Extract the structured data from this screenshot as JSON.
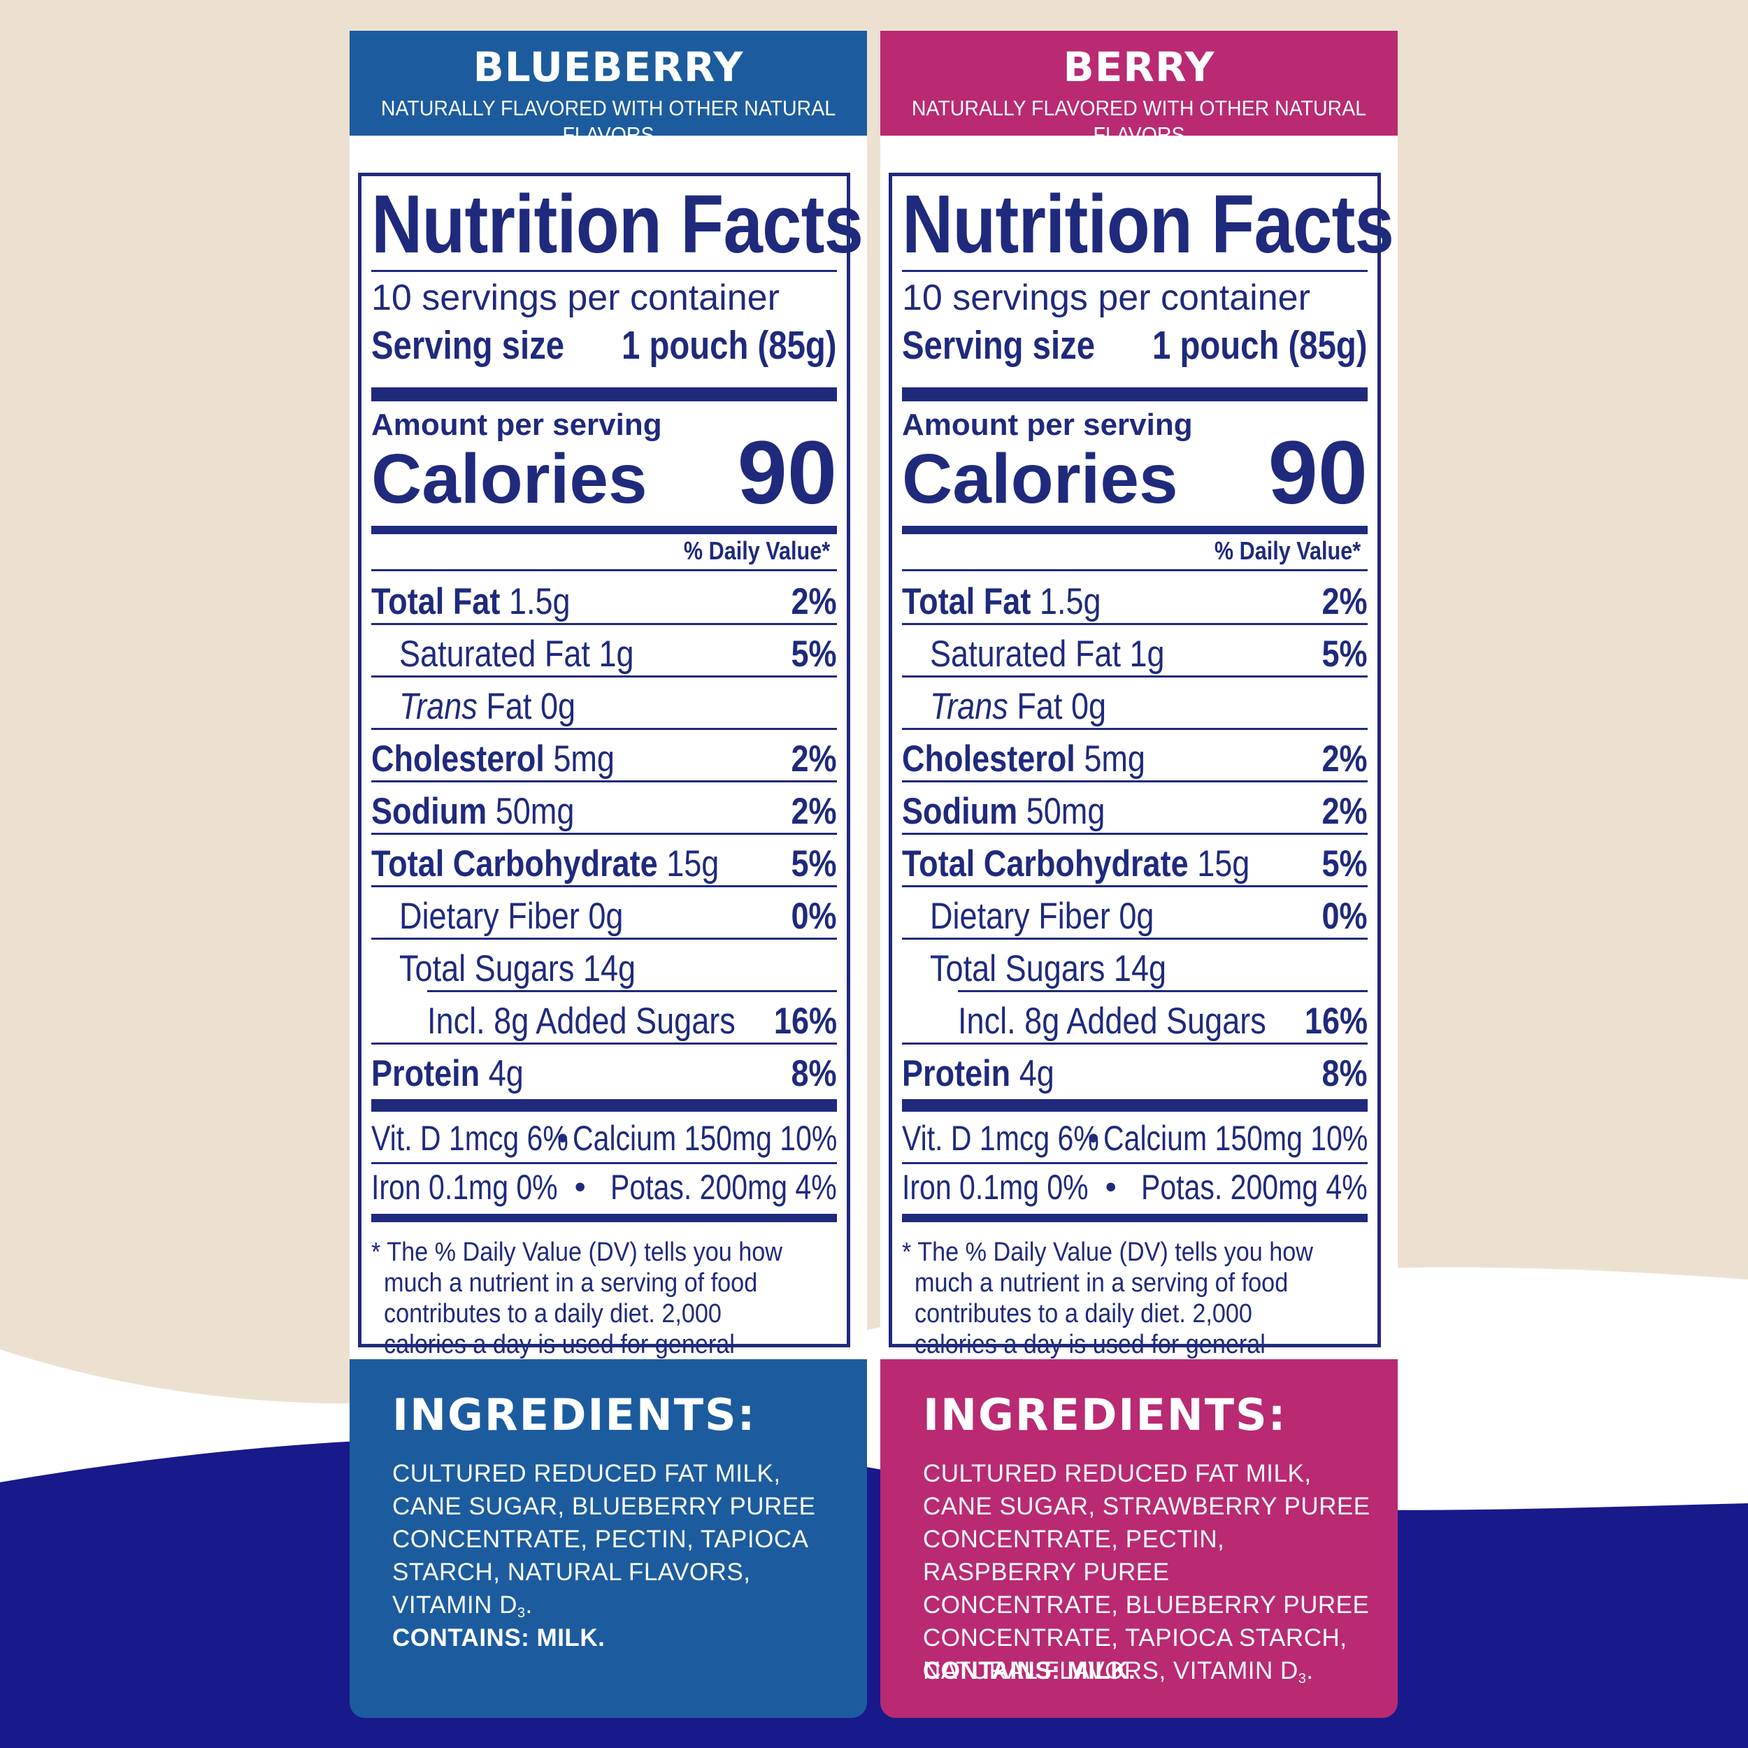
{
  "colors": {
    "navy": "#1f2a7d",
    "blueberry_blue": "#1c5c9e",
    "berry_magenta": "#b92a72",
    "cream": "#ece1d0"
  },
  "panels": [
    {
      "flavor": "BLUEBERRY",
      "flavor_subtitle": "NATURALLY FLAVORED WITH OTHER NATURAL FLAVORS",
      "nutrition": {
        "title": "Nutrition Facts",
        "servings": "10 servings per container",
        "serving_size_label": "Serving size",
        "serving_size_value": "1 pouch (85g)",
        "amount_per_serving": "Amount per serving",
        "calories_label": "Calories",
        "calories_value": "90",
        "dv_header": "% Daily Value*",
        "total_fat_label": "Total Fat",
        "total_fat_amount": "1.5g",
        "total_fat_dv": "2%",
        "sat_fat": "Saturated Fat 1g",
        "sat_fat_dv": "5%",
        "trans_label": "Trans",
        "trans_rest": "Fat 0g",
        "cholesterol_label": "Cholesterol",
        "cholesterol_amount": "5mg",
        "cholesterol_dv": "2%",
        "sodium_label": "Sodium",
        "sodium_amount": "50mg",
        "sodium_dv": "2%",
        "carb_label": "Total Carbohydrate",
        "carb_amount": "15g",
        "carb_dv": "5%",
        "fiber": "Dietary Fiber 0g",
        "fiber_dv": "0%",
        "sugars": "Total Sugars 14g",
        "added_sugars": "Incl. 8g Added Sugars",
        "added_sugars_dv": "16%",
        "protein_label": "Protein",
        "protein_amount": "4g",
        "protein_dv": "8%",
        "vitd": "Vit. D 1mcg 6%",
        "calcium": "Calcium 150mg 10%",
        "iron": "Iron 0.1mg 0%",
        "potas": "Potas. 200mg 4%",
        "footnote": "* The % Daily Value (DV) tells you how much a nutrient in a serving of food contributes to a daily diet. 2,000 calories a day is used for general nutrition advice."
      },
      "ingredients_heading": "INGREDIENTS:",
      "ingredients": "CULTURED REDUCED FAT MILK,\nCANE SUGAR, BLUEBERRY PUREE\nCONCENTRATE, PECTIN, TAPIOCA\nSTARCH, NATURAL FLAVORS,\nVITAMIN D",
      "ingredients_sub": "3",
      "ingredients_end": ".",
      "contains": "CONTAINS: MILK."
    },
    {
      "flavor": "BERRY",
      "flavor_subtitle": "NATURALLY FLAVORED WITH OTHER NATURAL FLAVORS",
      "nutrition": {
        "title": "Nutrition Facts",
        "servings": "10 servings per container",
        "serving_size_label": "Serving size",
        "serving_size_value": "1 pouch (85g)",
        "amount_per_serving": "Amount per serving",
        "calories_label": "Calories",
        "calories_value": "90",
        "dv_header": "% Daily Value*",
        "total_fat_label": "Total Fat",
        "total_fat_amount": "1.5g",
        "total_fat_dv": "2%",
        "sat_fat": "Saturated Fat 1g",
        "sat_fat_dv": "5%",
        "trans_label": "Trans",
        "trans_rest": "Fat 0g",
        "cholesterol_label": "Cholesterol",
        "cholesterol_amount": "5mg",
        "cholesterol_dv": "2%",
        "sodium_label": "Sodium",
        "sodium_amount": "50mg",
        "sodium_dv": "2%",
        "carb_label": "Total Carbohydrate",
        "carb_amount": "15g",
        "carb_dv": "5%",
        "fiber": "Dietary Fiber 0g",
        "fiber_dv": "0%",
        "sugars": "Total Sugars 14g",
        "added_sugars": "Incl. 8g Added Sugars",
        "added_sugars_dv": "16%",
        "protein_label": "Protein",
        "protein_amount": "4g",
        "protein_dv": "8%",
        "vitd": "Vit. D 1mcg 6%",
        "calcium": "Calcium 150mg 10%",
        "iron": "Iron 0.1mg 0%",
        "potas": "Potas. 200mg 4%",
        "footnote": "* The % Daily Value (DV) tells you how much a nutrient in a serving of food contributes to a daily diet. 2,000 calories a day is used for general nutrition advice."
      },
      "ingredients_heading": "INGREDIENTS:",
      "ingredients": "CULTURED REDUCED FAT MILK,\nCANE SUGAR, STRAWBERRY PUREE\nCONCENTRATE, PECTIN,\nRASPBERRY PUREE\nCONCENTRATE, BLUEBERRY PUREE\nCONCENTRATE, TAPIOCA STARCH,\nNATURAL FLAVORS, VITAMIN D",
      "ingredients_sub": "3",
      "ingredients_end": ".",
      "contains": "CONTAINS: MILK."
    }
  ]
}
